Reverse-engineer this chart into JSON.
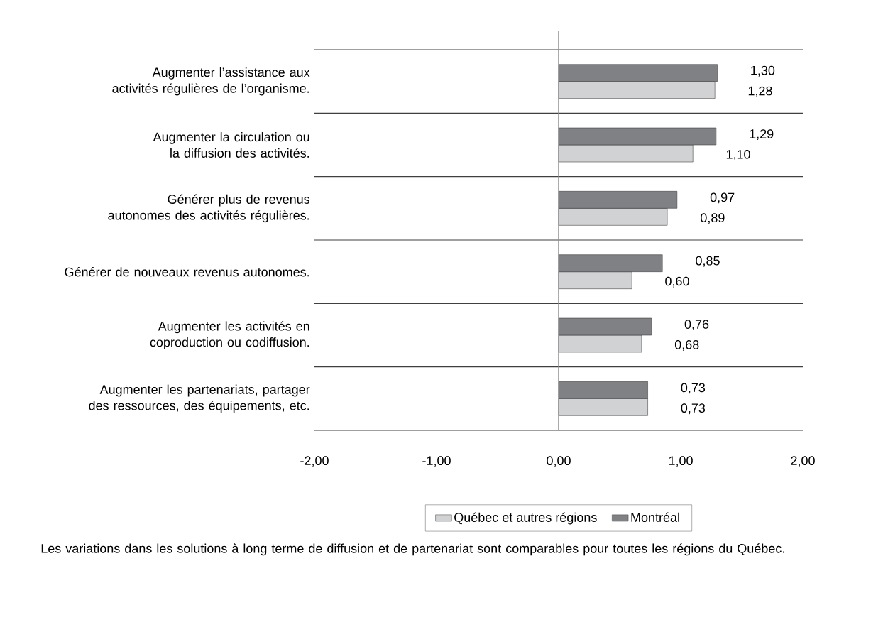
{
  "chart_data": {
    "type": "bar",
    "orientation": "horizontal",
    "categories": [
      "Augmenter l’assistance aux activités régulières de l’organisme.",
      "Augmenter la circulation ou la diffusion des activités.",
      "Générer plus de revenus autonomes des activités régulières.",
      "Générer de nouveaux revenus autonomes.",
      "Augmenter les activités en coproduction ou codiffusion.",
      "Augmenter les partenariats, partager des ressources, des équipements, etc."
    ],
    "series": [
      {
        "name": "Québec et autres régions",
        "color": "#d1d2d4",
        "values": [
          1.28,
          1.1,
          0.89,
          0.6,
          0.68,
          0.73
        ],
        "value_labels": [
          "1,28",
          "1,10",
          "0,89",
          "0,60",
          "0,68",
          "0,73"
        ]
      },
      {
        "name": "Montréal",
        "color": "#808184",
        "values": [
          1.3,
          1.29,
          0.97,
          0.85,
          0.76,
          0.73
        ],
        "value_labels": [
          "1,30",
          "1,29",
          "0,97",
          "0,85",
          "0,76",
          "0,73"
        ]
      }
    ],
    "xlim": [
      -2,
      2
    ],
    "xticks": [
      {
        "value": -2,
        "label": "-2,00"
      },
      {
        "value": -1,
        "label": "-1,00"
      },
      {
        "value": 0,
        "label": "0,00"
      },
      {
        "value": 1,
        "label": "1,00"
      },
      {
        "value": 2,
        "label": "2,00"
      }
    ],
    "grid": "y",
    "legend": "bottom",
    "annotations": [
      "Les variations dans les solutions à long terme de diffusion et de partenariat sont comparables pour toutes les régions du Québec."
    ]
  }
}
